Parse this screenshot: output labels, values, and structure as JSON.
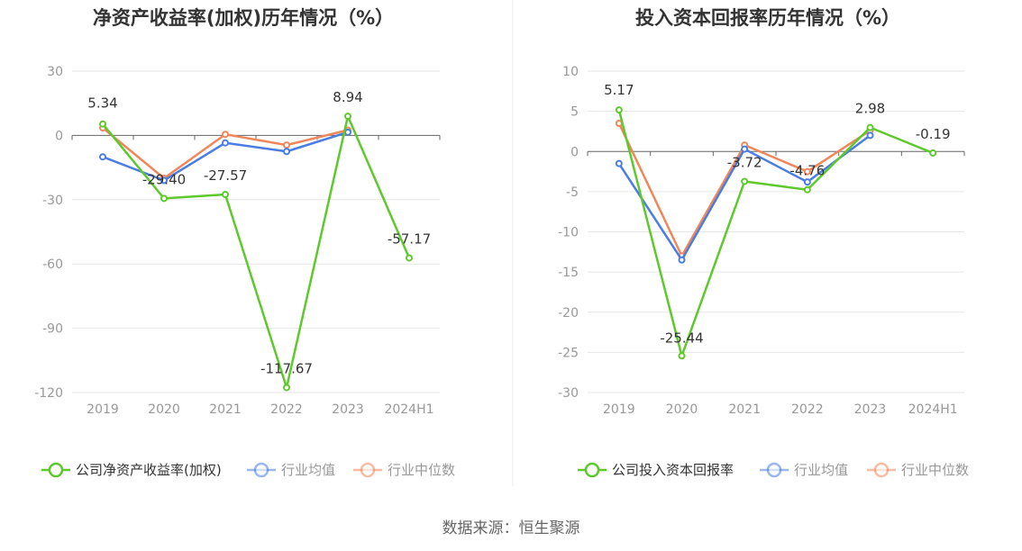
{
  "source_label": "数据来源：恒生聚源",
  "colors": {
    "company": "#5ec92c",
    "avg": "#4a7de3",
    "median": "#f0875a",
    "grid": "#e6e6e6",
    "axis": "#666666",
    "separator": "#eeeeee"
  },
  "chart_data": [
    {
      "type": "line",
      "title": "净资产收益率(加权)历年情况（%）",
      "categories": [
        "2019",
        "2020",
        "2021",
        "2022",
        "2023",
        "2024H1"
      ],
      "ylim": [
        -120,
        30
      ],
      "yticks": [
        30,
        0,
        -30,
        -60,
        -90,
        -120
      ],
      "ytick_labels": [
        "30",
        "0",
        "-30",
        "-60",
        "-90",
        "-120"
      ],
      "grid": true,
      "legend_position": "bottom",
      "series": [
        {
          "name": "公司净资产收益率(加权)",
          "color_key": "company",
          "values": [
            5.34,
            -29.4,
            -27.57,
            -117.67,
            8.94,
            -57.17
          ],
          "labels": [
            "5.34",
            "-29.40",
            "-27.57",
            "-117.67",
            "8.94",
            "-57.17"
          ]
        },
        {
          "name": "行业均值",
          "color_key": "avg",
          "values": [
            -10,
            -21,
            -3.5,
            -7.5,
            1.5,
            null
          ]
        },
        {
          "name": "行业中位数",
          "color_key": "median",
          "values": [
            3.5,
            -20,
            0.5,
            -4.5,
            2.5,
            null
          ]
        }
      ]
    },
    {
      "type": "line",
      "title": "投入资本回报率历年情况（%）",
      "categories": [
        "2019",
        "2020",
        "2021",
        "2022",
        "2023",
        "2024H1"
      ],
      "ylim": [
        -30,
        10
      ],
      "yticks": [
        10,
        5,
        0,
        -5,
        -10,
        -15,
        -20,
        -25,
        -30
      ],
      "ytick_labels": [
        "10",
        "5",
        "0",
        "-5",
        "-10",
        "-15",
        "-20",
        "-25",
        "-30"
      ],
      "grid": true,
      "legend_position": "bottom",
      "series": [
        {
          "name": "公司投入资本回报率",
          "color_key": "company",
          "values": [
            5.17,
            -25.44,
            -3.72,
            -4.76,
            2.98,
            -0.19
          ],
          "labels": [
            "5.17",
            "-25.44",
            "-3.72",
            "-4.76",
            "2.98",
            "-0.19"
          ]
        },
        {
          "name": "行业均值",
          "color_key": "avg",
          "values": [
            -1.5,
            -13.5,
            0.3,
            -3.8,
            2,
            null
          ]
        },
        {
          "name": "行业中位数",
          "color_key": "median",
          "values": [
            3.5,
            -13,
            0.8,
            -2.5,
            2.6,
            null
          ]
        }
      ]
    }
  ]
}
